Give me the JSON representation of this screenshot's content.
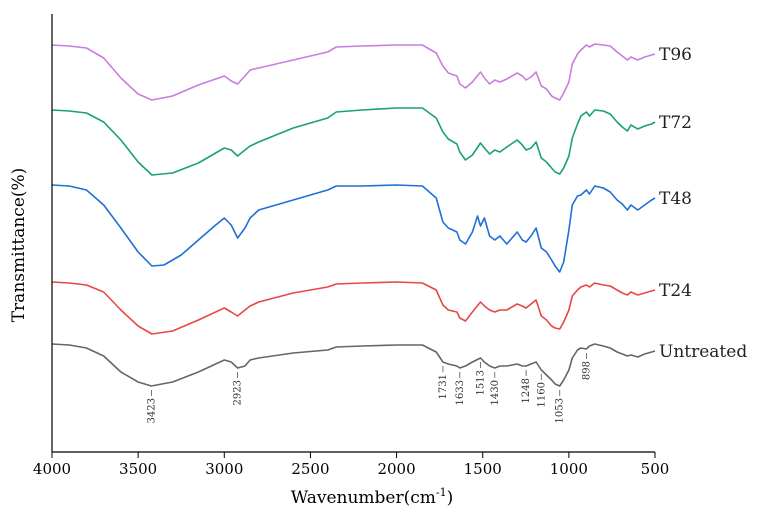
{
  "chart_data": {
    "type": "line",
    "xlabel_main": "Wavenumber(cm",
    "xlabel_sup": "-1",
    "xlabel_close": ")",
    "ylabel": "Transmittance(%)",
    "xlim": [
      4000,
      500
    ],
    "x_reversed": true,
    "x_ticks": [
      "4000",
      "3500",
      "3000",
      "2500",
      "2000",
      "1500",
      "1000",
      "500"
    ],
    "y_ticks": [],
    "grid": false,
    "series": [
      {
        "name": "T96",
        "color": "#c77ee0",
        "offset": 0,
        "points": [
          [
            4000,
            45
          ],
          [
            3900,
            46
          ],
          [
            3800,
            48
          ],
          [
            3700,
            58
          ],
          [
            3600,
            78
          ],
          [
            3500,
            94
          ],
          [
            3420,
            100
          ],
          [
            3300,
            96
          ],
          [
            3150,
            85
          ],
          [
            3000,
            76
          ],
          [
            2960,
            81
          ],
          [
            2923,
            84
          ],
          [
            2880,
            76
          ],
          [
            2850,
            70
          ],
          [
            2800,
            68
          ],
          [
            2600,
            60
          ],
          [
            2400,
            52
          ],
          [
            2350,
            47
          ],
          [
            2200,
            46
          ],
          [
            2000,
            45
          ],
          [
            1850,
            45
          ],
          [
            1770,
            53
          ],
          [
            1731,
            66
          ],
          [
            1700,
            73
          ],
          [
            1650,
            76
          ],
          [
            1633,
            84
          ],
          [
            1600,
            88
          ],
          [
            1560,
            82
          ],
          [
            1513,
            72
          ],
          [
            1490,
            78
          ],
          [
            1460,
            84
          ],
          [
            1430,
            80
          ],
          [
            1400,
            82
          ],
          [
            1360,
            79
          ],
          [
            1300,
            73
          ],
          [
            1270,
            76
          ],
          [
            1248,
            80
          ],
          [
            1220,
            77
          ],
          [
            1190,
            72
          ],
          [
            1160,
            86
          ],
          [
            1130,
            89
          ],
          [
            1100,
            96
          ],
          [
            1080,
            98
          ],
          [
            1053,
            100
          ],
          [
            1030,
            93
          ],
          [
            1000,
            82
          ],
          [
            980,
            64
          ],
          [
            950,
            54
          ],
          [
            930,
            50
          ],
          [
            898,
            45
          ],
          [
            880,
            47
          ],
          [
            850,
            44
          ],
          [
            800,
            45
          ],
          [
            760,
            46
          ],
          [
            720,
            52
          ],
          [
            690,
            56
          ],
          [
            660,
            60
          ],
          [
            640,
            57
          ],
          [
            600,
            60
          ],
          [
            560,
            57
          ],
          [
            520,
            55
          ],
          [
            500,
            54
          ]
        ]
      },
      {
        "name": "T72",
        "color": "#1aa36a",
        "offset": 0,
        "points": [
          [
            4000,
            110
          ],
          [
            3900,
            111
          ],
          [
            3800,
            113
          ],
          [
            3700,
            122
          ],
          [
            3600,
            140
          ],
          [
            3500,
            162
          ],
          [
            3420,
            175
          ],
          [
            3300,
            173
          ],
          [
            3150,
            163
          ],
          [
            3000,
            148
          ],
          [
            2960,
            150
          ],
          [
            2923,
            156
          ],
          [
            2880,
            150
          ],
          [
            2850,
            146
          ],
          [
            2800,
            142
          ],
          [
            2600,
            128
          ],
          [
            2400,
            118
          ],
          [
            2350,
            112
          ],
          [
            2200,
            110
          ],
          [
            2000,
            108
          ],
          [
            1850,
            108
          ],
          [
            1770,
            118
          ],
          [
            1731,
            132
          ],
          [
            1700,
            139
          ],
          [
            1650,
            144
          ],
          [
            1633,
            152
          ],
          [
            1600,
            160
          ],
          [
            1560,
            155
          ],
          [
            1513,
            143
          ],
          [
            1490,
            148
          ],
          [
            1460,
            154
          ],
          [
            1430,
            150
          ],
          [
            1400,
            152
          ],
          [
            1360,
            147
          ],
          [
            1300,
            140
          ],
          [
            1270,
            145
          ],
          [
            1248,
            150
          ],
          [
            1220,
            148
          ],
          [
            1190,
            142
          ],
          [
            1160,
            158
          ],
          [
            1130,
            162
          ],
          [
            1100,
            168
          ],
          [
            1080,
            172
          ],
          [
            1053,
            174
          ],
          [
            1030,
            168
          ],
          [
            1000,
            156
          ],
          [
            980,
            138
          ],
          [
            950,
            124
          ],
          [
            930,
            116
          ],
          [
            898,
            112
          ],
          [
            880,
            116
          ],
          [
            850,
            110
          ],
          [
            800,
            111
          ],
          [
            760,
            114
          ],
          [
            720,
            122
          ],
          [
            690,
            127
          ],
          [
            660,
            131
          ],
          [
            640,
            125
          ],
          [
            600,
            129
          ],
          [
            560,
            126
          ],
          [
            520,
            124
          ],
          [
            500,
            122
          ]
        ]
      },
      {
        "name": "T48",
        "color": "#1f6fd8",
        "offset": 0,
        "points": [
          [
            4000,
            185
          ],
          [
            3900,
            186
          ],
          [
            3800,
            190
          ],
          [
            3700,
            205
          ],
          [
            3600,
            228
          ],
          [
            3500,
            252
          ],
          [
            3420,
            266
          ],
          [
            3350,
            265
          ],
          [
            3250,
            255
          ],
          [
            3150,
            240
          ],
          [
            3050,
            225
          ],
          [
            3000,
            218
          ],
          [
            2960,
            225
          ],
          [
            2923,
            238
          ],
          [
            2880,
            228
          ],
          [
            2850,
            218
          ],
          [
            2800,
            210
          ],
          [
            2600,
            200
          ],
          [
            2400,
            190
          ],
          [
            2350,
            186
          ],
          [
            2200,
            186
          ],
          [
            2000,
            185
          ],
          [
            1850,
            186
          ],
          [
            1770,
            198
          ],
          [
            1731,
            222
          ],
          [
            1700,
            228
          ],
          [
            1650,
            232
          ],
          [
            1633,
            240
          ],
          [
            1600,
            244
          ],
          [
            1560,
            232
          ],
          [
            1530,
            216
          ],
          [
            1513,
            226
          ],
          [
            1490,
            218
          ],
          [
            1460,
            236
          ],
          [
            1430,
            240
          ],
          [
            1400,
            236
          ],
          [
            1360,
            244
          ],
          [
            1300,
            232
          ],
          [
            1270,
            240
          ],
          [
            1248,
            242
          ],
          [
            1220,
            236
          ],
          [
            1190,
            228
          ],
          [
            1160,
            248
          ],
          [
            1130,
            252
          ],
          [
            1100,
            260
          ],
          [
            1080,
            266
          ],
          [
            1053,
            272
          ],
          [
            1030,
            262
          ],
          [
            1000,
            230
          ],
          [
            980,
            205
          ],
          [
            950,
            196
          ],
          [
            930,
            195
          ],
          [
            898,
            190
          ],
          [
            880,
            194
          ],
          [
            850,
            186
          ],
          [
            800,
            188
          ],
          [
            760,
            192
          ],
          [
            720,
            200
          ],
          [
            690,
            204
          ],
          [
            660,
            210
          ],
          [
            640,
            205
          ],
          [
            600,
            210
          ],
          [
            560,
            205
          ],
          [
            520,
            200
          ],
          [
            500,
            198
          ]
        ]
      },
      {
        "name": "T24",
        "color": "#e64848",
        "offset": 0,
        "points": [
          [
            4000,
            282
          ],
          [
            3900,
            283
          ],
          [
            3800,
            285
          ],
          [
            3700,
            292
          ],
          [
            3600,
            310
          ],
          [
            3500,
            326
          ],
          [
            3420,
            334
          ],
          [
            3300,
            331
          ],
          [
            3150,
            320
          ],
          [
            3000,
            308
          ],
          [
            2960,
            312
          ],
          [
            2923,
            316
          ],
          [
            2880,
            310
          ],
          [
            2850,
            306
          ],
          [
            2800,
            302
          ],
          [
            2600,
            293
          ],
          [
            2400,
            287
          ],
          [
            2350,
            284
          ],
          [
            2200,
            283
          ],
          [
            2000,
            282
          ],
          [
            1850,
            283
          ],
          [
            1770,
            290
          ],
          [
            1731,
            305
          ],
          [
            1700,
            310
          ],
          [
            1650,
            312
          ],
          [
            1633,
            318
          ],
          [
            1600,
            321
          ],
          [
            1560,
            312
          ],
          [
            1513,
            302
          ],
          [
            1490,
            306
          ],
          [
            1460,
            310
          ],
          [
            1430,
            312
          ],
          [
            1400,
            310
          ],
          [
            1360,
            310
          ],
          [
            1300,
            304
          ],
          [
            1270,
            306
          ],
          [
            1248,
            308
          ],
          [
            1220,
            304
          ],
          [
            1190,
            300
          ],
          [
            1160,
            316
          ],
          [
            1130,
            320
          ],
          [
            1100,
            326
          ],
          [
            1080,
            328
          ],
          [
            1053,
            329
          ],
          [
            1030,
            322
          ],
          [
            1000,
            310
          ],
          [
            980,
            296
          ],
          [
            950,
            290
          ],
          [
            930,
            287
          ],
          [
            898,
            285
          ],
          [
            880,
            287
          ],
          [
            850,
            283
          ],
          [
            800,
            285
          ],
          [
            760,
            286
          ],
          [
            720,
            290
          ],
          [
            690,
            293
          ],
          [
            660,
            295
          ],
          [
            640,
            292
          ],
          [
            600,
            295
          ],
          [
            560,
            293
          ],
          [
            520,
            291
          ],
          [
            500,
            290
          ]
        ]
      },
      {
        "name": "Untreated",
        "color": "#666666",
        "offset": 0,
        "points": [
          [
            4000,
            344
          ],
          [
            3900,
            345
          ],
          [
            3800,
            348
          ],
          [
            3700,
            356
          ],
          [
            3600,
            372
          ],
          [
            3500,
            382
          ],
          [
            3423,
            386
          ],
          [
            3300,
            382
          ],
          [
            3150,
            372
          ],
          [
            3000,
            360
          ],
          [
            2960,
            362
          ],
          [
            2923,
            368
          ],
          [
            2880,
            366
          ],
          [
            2850,
            360
          ],
          [
            2800,
            358
          ],
          [
            2600,
            353
          ],
          [
            2400,
            350
          ],
          [
            2350,
            347
          ],
          [
            2200,
            346
          ],
          [
            2000,
            345
          ],
          [
            1850,
            345
          ],
          [
            1770,
            352
          ],
          [
            1731,
            362
          ],
          [
            1700,
            364
          ],
          [
            1650,
            366
          ],
          [
            1633,
            368
          ],
          [
            1600,
            366
          ],
          [
            1560,
            362
          ],
          [
            1513,
            358
          ],
          [
            1490,
            362
          ],
          [
            1460,
            366
          ],
          [
            1430,
            368
          ],
          [
            1400,
            366
          ],
          [
            1360,
            366
          ],
          [
            1300,
            364
          ],
          [
            1270,
            366
          ],
          [
            1248,
            366
          ],
          [
            1220,
            364
          ],
          [
            1190,
            362
          ],
          [
            1160,
            370
          ],
          [
            1130,
            375
          ],
          [
            1100,
            380
          ],
          [
            1080,
            384
          ],
          [
            1053,
            386
          ],
          [
            1030,
            380
          ],
          [
            1000,
            370
          ],
          [
            980,
            358
          ],
          [
            950,
            350
          ],
          [
            930,
            348
          ],
          [
            898,
            349
          ],
          [
            880,
            346
          ],
          [
            850,
            344
          ],
          [
            800,
            346
          ],
          [
            760,
            348
          ],
          [
            720,
            352
          ],
          [
            690,
            354
          ],
          [
            660,
            356
          ],
          [
            640,
            355
          ],
          [
            600,
            357
          ],
          [
            560,
            354
          ],
          [
            520,
            352
          ],
          [
            500,
            351
          ]
        ]
      }
    ],
    "peak_labels": [
      {
        "text": "3423",
        "x": 3423
      },
      {
        "text": "2923",
        "x": 2923
      },
      {
        "text": "1731",
        "x": 1731
      },
      {
        "text": "1633",
        "x": 1633
      },
      {
        "text": "1513",
        "x": 1513
      },
      {
        "text": "1430",
        "x": 1430
      },
      {
        "text": "1248",
        "x": 1248
      },
      {
        "text": "1160",
        "x": 1160
      },
      {
        "text": "1053",
        "x": 1053
      },
      {
        "text": "898",
        "x": 898
      }
    ]
  }
}
